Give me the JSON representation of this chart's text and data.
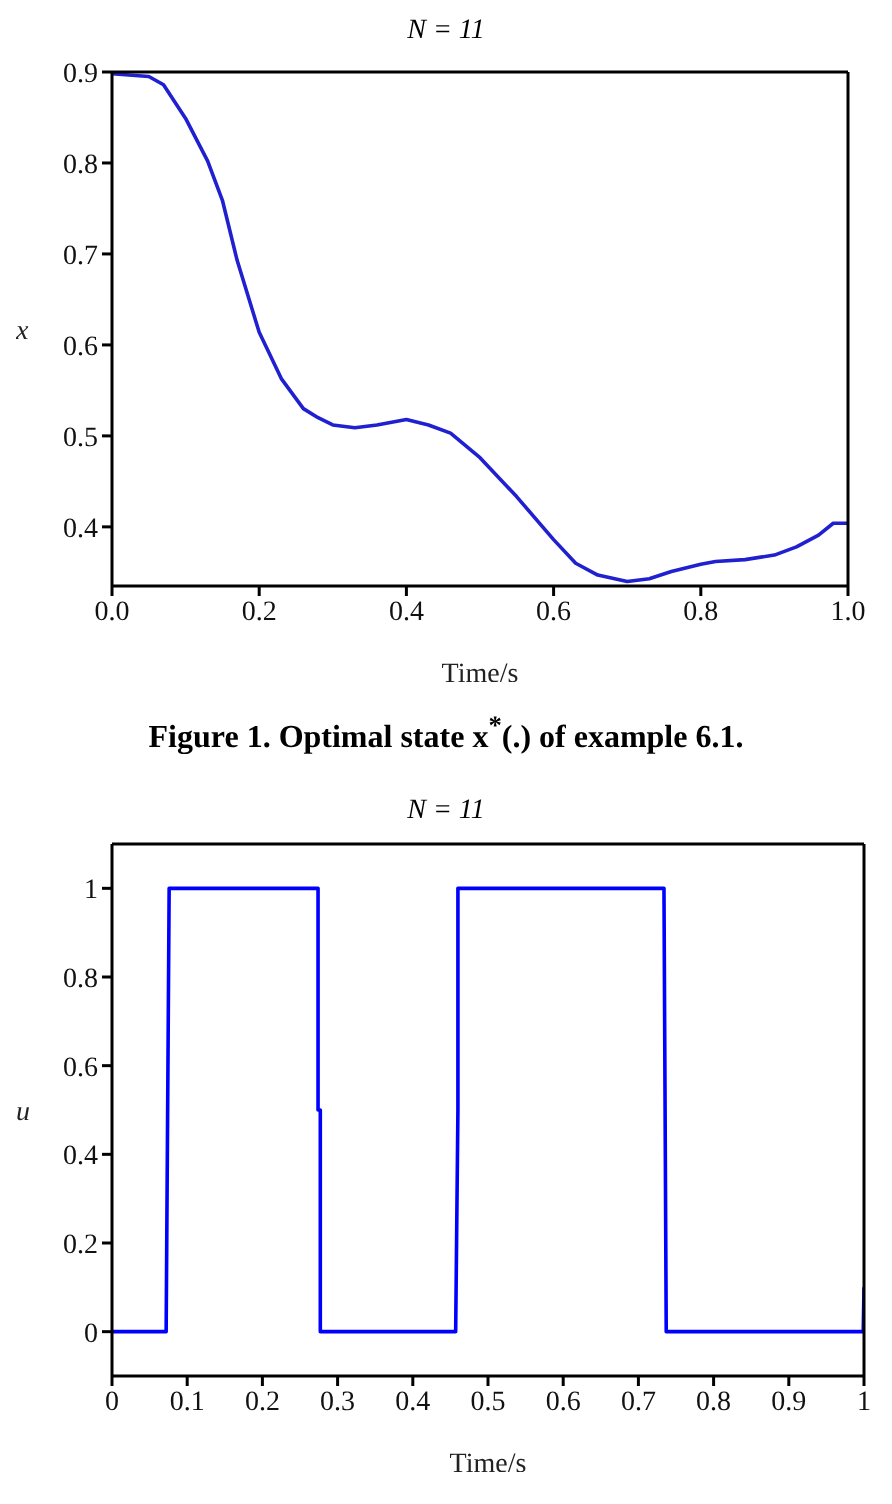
{
  "chart_data": [
    {
      "type": "line",
      "title": "N = 11",
      "xlabel": "Time/s",
      "ylabel": "x",
      "annotations": [
        "Figure 1. Optimal state x$^{*}$(.) of example 6.1."
      ],
      "xlim": [
        0,
        1
      ],
      "xticks": [
        {
          "value": 0,
          "label": "0.0"
        },
        0.2,
        0.4,
        0.6,
        0.8,
        {
          "value": 1,
          "label": "1.0"
        }
      ],
      "ylim": [
        0.335,
        0.9
      ],
      "yticks": [
        0.4,
        0.5,
        0.6,
        0.7,
        0.8,
        0.9
      ],
      "grid": false,
      "legend": false,
      "marker": "none",
      "line_style": "solid",
      "series": [
        {
          "color": "#2020d0",
          "x": [
            0,
            0.05,
            0.07,
            0.1,
            0.13,
            0.15,
            0.17,
            0.2,
            0.23,
            0.26,
            0.28,
            0.3,
            0.33,
            0.36,
            0.4,
            0.43,
            0.46,
            0.5,
            0.55,
            0.6,
            0.63,
            0.66,
            0.7,
            0.73,
            0.76,
            0.8,
            0.82,
            0.86,
            0.9,
            0.93,
            0.96,
            0.98,
            1
          ],
          "values": [
            0.898,
            0.895,
            0.886,
            0.849,
            0.802,
            0.759,
            0.693,
            0.614,
            0.563,
            0.53,
            0.52,
            0.512,
            0.509,
            0.512,
            0.518,
            0.512,
            0.503,
            0.476,
            0.433,
            0.386,
            0.36,
            0.347,
            0.34,
            0.343,
            0.351,
            0.359,
            0.362,
            0.364,
            0.369,
            0.378,
            0.391,
            0.404,
            0.404
          ]
        }
      ]
    },
    {
      "type": "line",
      "title": "N = 11",
      "xlabel": "Time/s",
      "ylabel": "u",
      "xlim": [
        0,
        1
      ],
      "xticks": [
        0,
        0.1,
        0.2,
        0.3,
        0.4,
        0.5,
        0.6,
        0.7,
        0.8,
        0.9,
        1
      ],
      "ylim": [
        -0.1,
        1.1
      ],
      "yticks": [
        0,
        0.2,
        0.4,
        0.6,
        0.8,
        1
      ],
      "grid": false,
      "legend": false,
      "marker": "none",
      "line_style": "solid",
      "series": [
        {
          "color": "#0000ff",
          "x": [
            0,
            0.072,
            0.076,
            0.274,
            0.274,
            0.277,
            0.277,
            0.457,
            0.46,
            0.46,
            0.734,
            0.737,
            0.999,
            1
          ],
          "values": [
            0,
            0,
            1,
            1,
            0.5,
            0.5,
            0,
            0,
            0.5,
            1,
            1,
            0,
            0,
            0.1
          ]
        }
      ]
    }
  ]
}
